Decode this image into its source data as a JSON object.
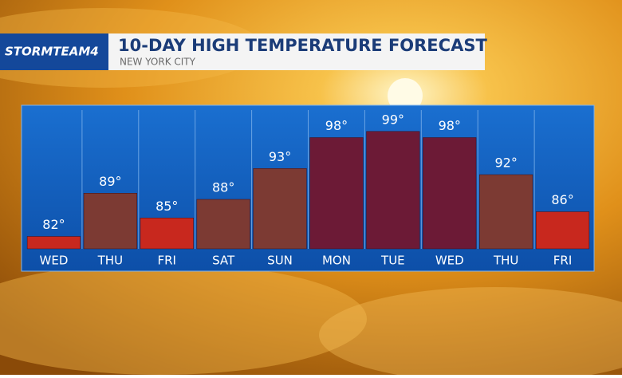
{
  "brand": "STORMTEAM4",
  "chart_data": {
    "type": "bar",
    "title": "10-DAY HIGH TEMPERATURE FORECAST",
    "subtitle": "NEW YORK CITY",
    "categories": [
      "WED",
      "THU",
      "FRI",
      "SAT",
      "SUN",
      "MON",
      "TUE",
      "WED",
      "THU",
      "FRI"
    ],
    "values": [
      82,
      89,
      85,
      88,
      93,
      98,
      99,
      98,
      92,
      86
    ],
    "value_labels": [
      "82°",
      "89°",
      "85°",
      "88°",
      "93°",
      "98°",
      "99°",
      "98°",
      "92°",
      "86°"
    ],
    "colors": [
      "#c8281e",
      "#7c3a33",
      "#c8281e",
      "#7c3a33",
      "#7c3a33",
      "#6c1a36",
      "#6c1a36",
      "#6c1a36",
      "#7c3a33",
      "#c8281e"
    ],
    "ylim": [
      80,
      100
    ]
  }
}
